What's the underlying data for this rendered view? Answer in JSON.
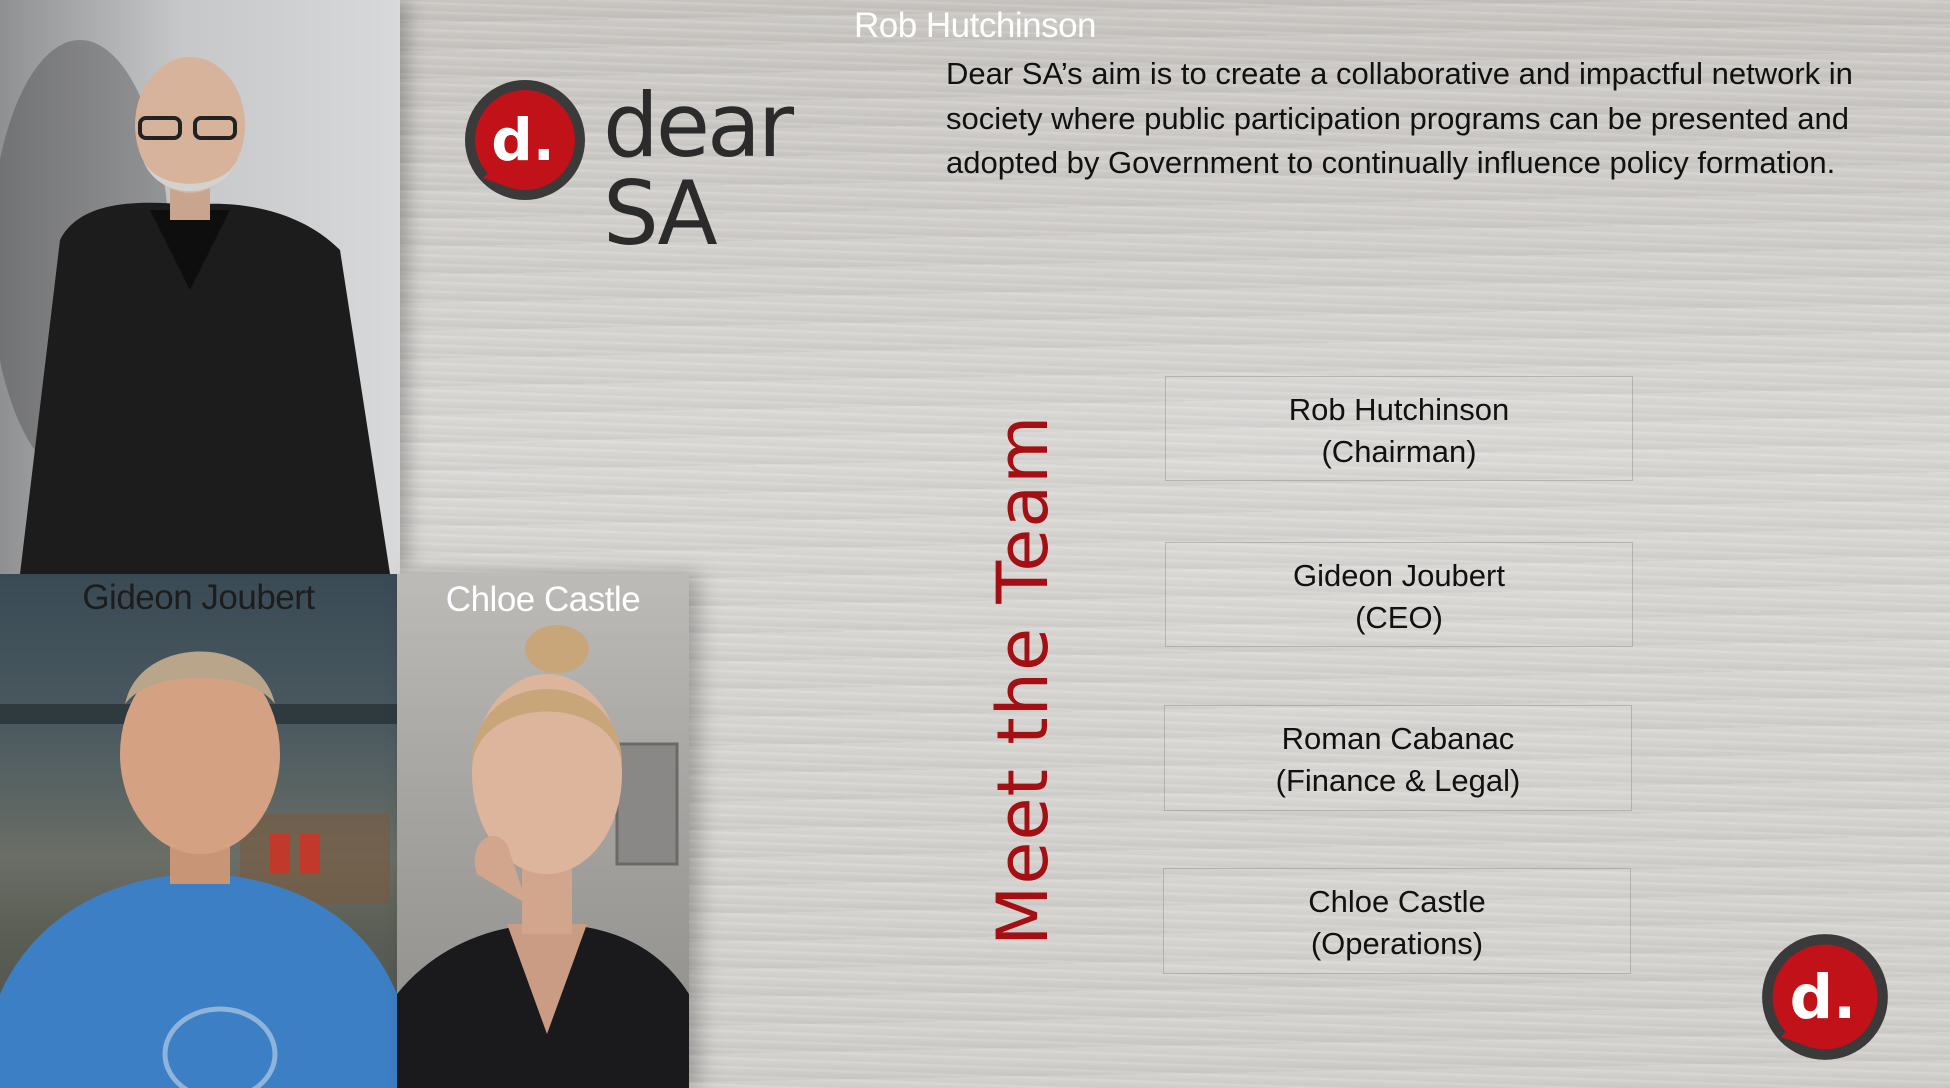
{
  "brand": {
    "wordmark": "dear SA",
    "badge_letter": "d.",
    "accent_color": "#c1121a",
    "ring_color": "#3a3a3a"
  },
  "mission_text": "Dear SA’s aim is to create a collaborative and impactful network in society where public participation programs can be presented and adopted by Government to continually influence policy formation.",
  "meet_title": "Meet the Team",
  "photos": [
    {
      "caption": "Rob Hutchinson"
    },
    {
      "caption": "Gideon Joubert"
    },
    {
      "caption": "Chloe Castle"
    }
  ],
  "team": [
    {
      "name": "Rob Hutchinson",
      "role": "(Chairman)"
    },
    {
      "name": "Gideon Joubert",
      "role": "(CEO)"
    },
    {
      "name": "Roman Cabanac",
      "role": "(Finance & Legal)"
    },
    {
      "name": "Chloe Castle",
      "role": "(Operations)"
    }
  ]
}
